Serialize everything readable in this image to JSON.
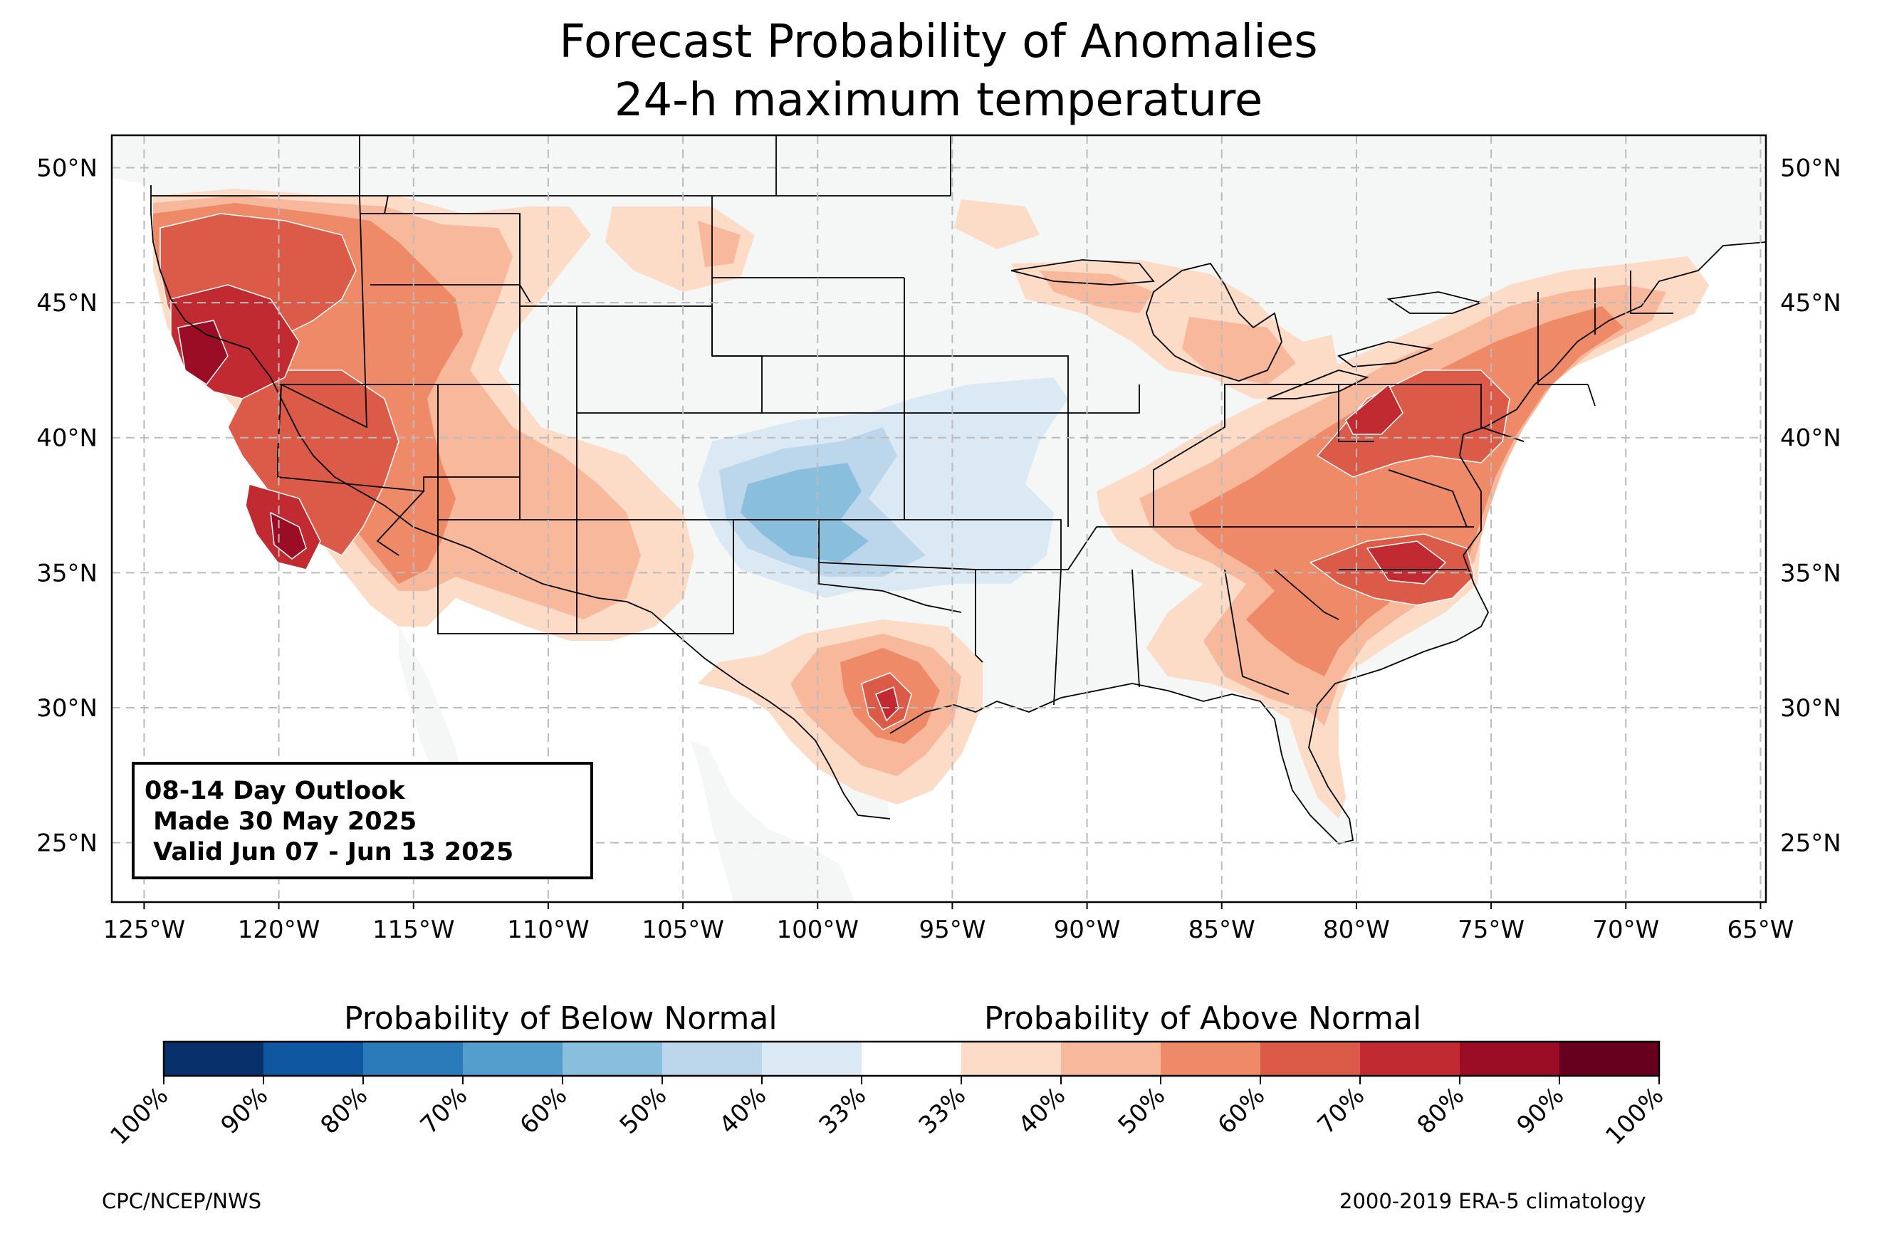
{
  "title": {
    "line1": "Forecast Probability of Anomalies",
    "line2": "24-h maximum temperature"
  },
  "info_box": {
    "line1": "08-14 Day Outlook",
    "line2": " Made 30 May 2025",
    "line3": " Valid Jun 07 - Jun 13 2025"
  },
  "map": {
    "lon_range": [
      -126.2,
      -64.8
    ],
    "lat_range": [
      22.8,
      51.2
    ],
    "lon_ticks": [
      "125°W",
      "120°W",
      "115°W",
      "110°W",
      "105°W",
      "100°W",
      "95°W",
      "90°W",
      "85°W",
      "80°W",
      "75°W",
      "70°W",
      "65°W"
    ],
    "lat_ticks": [
      "50°N",
      "45°N",
      "40°N",
      "35°N",
      "30°N",
      "25°N"
    ],
    "colors": {
      "below": [
        "#08306b",
        "#0f57a0",
        "#2b7bba",
        "#539ecd",
        "#89bfdd",
        "#bcd7eb",
        "#dbe9f5"
      ],
      "above": [
        "#fcdbc7",
        "#f7b89b",
        "#ef8a68",
        "#db5a48",
        "#c22a32",
        "#9b0d24",
        "#67001f"
      ],
      "land": "#f5f7f7"
    },
    "regions": [
      {
        "name": "Pacific Northwest and Great Basin",
        "category": "above",
        "peak": "80%"
      },
      {
        "name": "Southern California",
        "category": "above",
        "peak": "90%"
      },
      {
        "name": "Southwest",
        "category": "above",
        "peak": "50%"
      },
      {
        "name": "Northern Rockies",
        "category": "above",
        "peak": "50%"
      },
      {
        "name": "Southern Plains",
        "category": "below",
        "peak": "50%"
      },
      {
        "name": "Central Texas",
        "category": "above",
        "peak": "80%"
      },
      {
        "name": "Upper Midwest",
        "category": "above",
        "peak": "50%"
      },
      {
        "name": "Ohio Valley and Southeast",
        "category": "above",
        "peak": "70%"
      },
      {
        "name": "Mid-Atlantic and Carolinas",
        "category": "above",
        "peak": "80%"
      },
      {
        "name": "Northeast",
        "category": "above",
        "peak": "60%"
      }
    ]
  },
  "colorbar": {
    "below_heading": "Probability of Below Normal",
    "above_heading": "Probability of Above Normal",
    "tick_labels": [
      "100%",
      "90%",
      "80%",
      "70%",
      "60%",
      "50%",
      "40%",
      "33%",
      "33%",
      "40%",
      "50%",
      "60%",
      "70%",
      "80%",
      "90%",
      "100%"
    ]
  },
  "footer": {
    "left": "CPC/NCEP/NWS",
    "right": "2000-2019 ERA-5 climatology"
  }
}
